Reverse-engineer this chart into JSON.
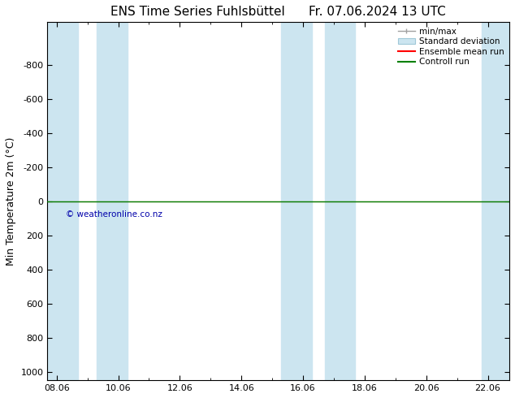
{
  "title_left": "ENS Time Series Fuhlsbüttel",
  "title_right": "Fr. 07.06.2024 13 UTC",
  "ylabel": "Min Temperature 2m (°C)",
  "ylim_top": -1050,
  "ylim_bottom": 1050,
  "yticks": [
    -800,
    -600,
    -400,
    -200,
    0,
    200,
    400,
    600,
    800,
    1000
  ],
  "xtick_labels": [
    "08.06",
    "10.06",
    "12.06",
    "14.06",
    "16.06",
    "18.06",
    "20.06",
    "22.06"
  ],
  "xtick_positions": [
    0,
    2,
    4,
    6,
    8,
    10,
    12,
    14
  ],
  "xlim": [
    -0.3,
    14.7
  ],
  "shaded_bands": [
    [
      -0.3,
      0.7
    ],
    [
      1.3,
      2.3
    ],
    [
      7.3,
      8.3
    ],
    [
      8.7,
      9.7
    ],
    [
      13.8,
      14.7
    ]
  ],
  "green_line_y": 0,
  "red_line_y": 0,
  "control_run_color": "#008000",
  "ensemble_mean_color": "#ff0000",
  "minmax_color": "#a0a0a0",
  "std_dev_color": "#cce5f0",
  "std_dev_edge_color": "#a0c8d8",
  "band_color": "#cce5f0",
  "background_color": "#ffffff",
  "copyright_text": "© weatheronline.co.nz",
  "copyright_color": "#0000aa",
  "legend_labels": [
    "min/max",
    "Standard deviation",
    "Ensemble mean run",
    "Controll run"
  ],
  "title_fontsize": 11,
  "axis_fontsize": 9,
  "tick_fontsize": 8,
  "legend_fontsize": 7.5
}
